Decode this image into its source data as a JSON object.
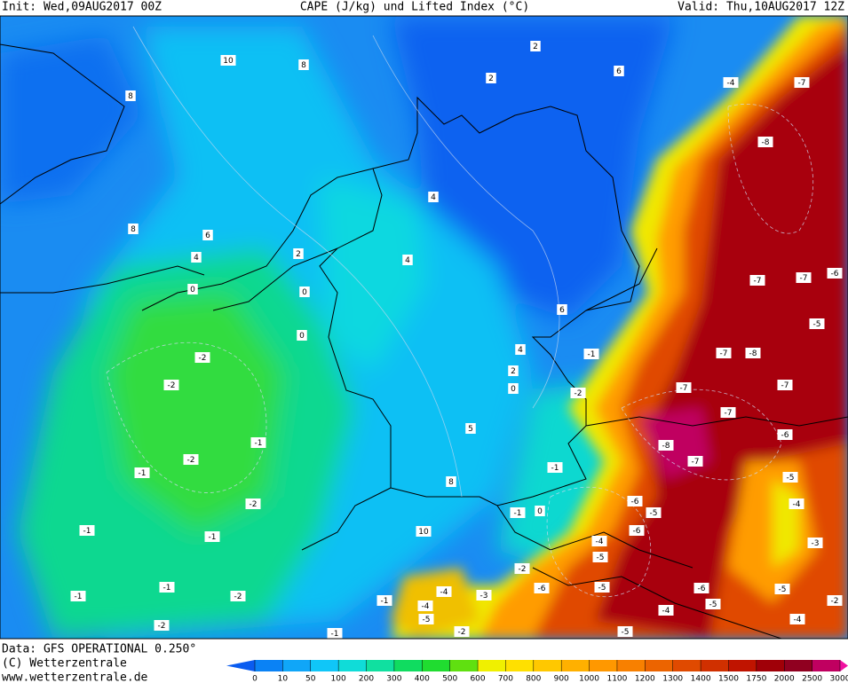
{
  "header": {
    "init": "Init: Wed,09AUG2017 00Z",
    "title": "CAPE (J/kg) und Lifted Index (°C)",
    "valid": "Valid: Thu,10AUG2017 12Z"
  },
  "footer": {
    "data": "Data: GFS OPERATIONAL 0.250°",
    "copyright": "(C) Wetterzentrale",
    "url": "www.wetterzentrale.de"
  },
  "colorbar": {
    "ticks": [
      0,
      10,
      50,
      100,
      200,
      300,
      400,
      500,
      600,
      700,
      800,
      900,
      1000,
      1100,
      1200,
      1300,
      1400,
      1500,
      1750,
      2000,
      2500,
      3000
    ],
    "colors": [
      "#0a5cf0",
      "#0a82f5",
      "#10a6f8",
      "#10c6f8",
      "#10dcd8",
      "#10e0a0",
      "#10dc60",
      "#20dc30",
      "#60e010",
      "#f0f000",
      "#ffe000",
      "#ffc800",
      "#ffb000",
      "#ff9800",
      "#f88000",
      "#ec6400",
      "#e04a00",
      "#d03000",
      "#c01400",
      "#a00008",
      "#900020",
      "#c00060",
      "#f010a0"
    ]
  },
  "map": {
    "contour_labels": [
      "10",
      "8",
      "8",
      "2",
      "2",
      "6",
      "-4",
      "-7",
      "-8",
      "8",
      "6",
      "4",
      "2",
      "4",
      "4",
      "0",
      "0",
      "0",
      "6",
      "4",
      "2",
      "0",
      "-1",
      "-2",
      "-2",
      "-2",
      "-1",
      "-2",
      "-1",
      "-2",
      "-1",
      "-1",
      "5",
      "8",
      "10",
      "-1",
      "0",
      "-1",
      "-7",
      "-7",
      "-6",
      "-7",
      "-8",
      "-7",
      "-7",
      "-7",
      "-6",
      "-8",
      "-7",
      "-5",
      "-5",
      "-4",
      "-6",
      "-5",
      "-6",
      "-4",
      "-5",
      "-2",
      "-6",
      "-5",
      "-4",
      "-3",
      "-4",
      "-5",
      "-2",
      "-6",
      "-5",
      "-3",
      "-4",
      "-2",
      "-5",
      "-4",
      "-5",
      "-1",
      "-1",
      "-1",
      "-2",
      "-1",
      "-2"
    ]
  }
}
